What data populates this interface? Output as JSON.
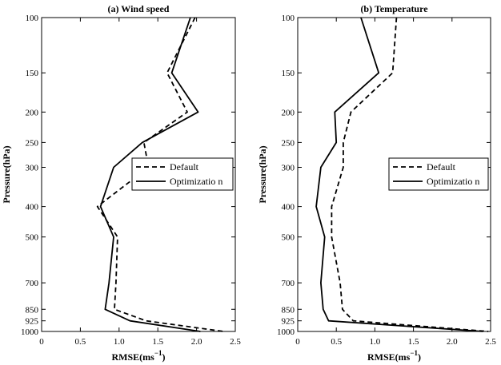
{
  "chart_data": [
    {
      "type": "line",
      "title": "(a) Wind speed",
      "xlabel": "RMSE(ms",
      "xlabel_sup": "−1",
      "xlabel_end": ")",
      "ylabel": "Pressure(hPa)",
      "xlim": [
        0,
        2.5
      ],
      "ylim": [
        100,
        1000
      ],
      "y_scale": "log",
      "y_inverted": true,
      "x_ticks": [
        0,
        0.5,
        1,
        1.5,
        2,
        2.5
      ],
      "x_tick_labels": [
        "0",
        "0.5",
        "1.0",
        "1.5",
        "2.0",
        "2.5"
      ],
      "y_ticks": [
        100,
        150,
        200,
        250,
        300,
        400,
        500,
        700,
        850,
        925,
        1000
      ],
      "y_tick_labels": [
        "100",
        "150",
        "200",
        "250",
        "300",
        "400",
        "500",
        "700",
        "850",
        "925",
        "1000"
      ],
      "legend_position": "right",
      "grid": false,
      "series": [
        {
          "name": "Default",
          "style": "dashed",
          "color": "#000000",
          "points": [
            [
              1.98,
              100
            ],
            [
              1.62,
              150
            ],
            [
              1.88,
              200
            ],
            [
              1.32,
              250
            ],
            [
              1.38,
              300
            ],
            [
              0.72,
              400
            ],
            [
              0.98,
              500
            ],
            [
              0.96,
              700
            ],
            [
              0.94,
              850
            ],
            [
              1.35,
              925
            ],
            [
              2.35,
              1000
            ]
          ]
        },
        {
          "name": "Optimization",
          "style": "solid",
          "color": "#000000",
          "points": [
            [
              1.92,
              100
            ],
            [
              1.68,
              150
            ],
            [
              2.02,
              200
            ],
            [
              1.3,
              250
            ],
            [
              0.93,
              300
            ],
            [
              0.76,
              400
            ],
            [
              0.93,
              500
            ],
            [
              0.87,
              700
            ],
            [
              0.82,
              850
            ],
            [
              1.14,
              925
            ],
            [
              2.05,
              1000
            ]
          ]
        }
      ]
    },
    {
      "type": "line",
      "title": "(b) Temperature",
      "xlabel": "RMSE(ms",
      "xlabel_sup": "−1",
      "xlabel_end": ")",
      "ylabel": "Pressure(hPa)",
      "xlim": [
        0,
        2.5
      ],
      "ylim": [
        100,
        1000
      ],
      "y_scale": "log",
      "y_inverted": true,
      "x_ticks": [
        0,
        0.5,
        1,
        1.5,
        2,
        2.5
      ],
      "x_tick_labels": [
        "0",
        "0.5",
        "1.0",
        "1.5",
        "2.0",
        "2.5"
      ],
      "y_ticks": [
        100,
        150,
        200,
        250,
        300,
        400,
        500,
        700,
        850,
        925,
        1000
      ],
      "y_tick_labels": [
        "100",
        "150",
        "200",
        "250",
        "300",
        "400",
        "500",
        "700",
        "850",
        "925",
        "1000"
      ],
      "legend_position": "right",
      "grid": false,
      "series": [
        {
          "name": "Default",
          "style": "dashed",
          "color": "#000000",
          "points": [
            [
              1.28,
              100
            ],
            [
              1.23,
              150
            ],
            [
              0.69,
              200
            ],
            [
              0.59,
              250
            ],
            [
              0.59,
              300
            ],
            [
              0.44,
              400
            ],
            [
              0.44,
              500
            ],
            [
              0.55,
              700
            ],
            [
              0.58,
              850
            ],
            [
              0.72,
              925
            ],
            [
              2.47,
              1000
            ]
          ]
        },
        {
          "name": "Optimization",
          "style": "solid",
          "color": "#000000",
          "points": [
            [
              0.82,
              100
            ],
            [
              1.05,
              150
            ],
            [
              0.48,
              200
            ],
            [
              0.5,
              250
            ],
            [
              0.3,
              300
            ],
            [
              0.24,
              400
            ],
            [
              0.35,
              500
            ],
            [
              0.3,
              700
            ],
            [
              0.33,
              850
            ],
            [
              0.4,
              925
            ],
            [
              2.4,
              1000
            ]
          ]
        }
      ]
    }
  ],
  "legend_labels": [
    "Default",
    "Optimizatio n"
  ]
}
